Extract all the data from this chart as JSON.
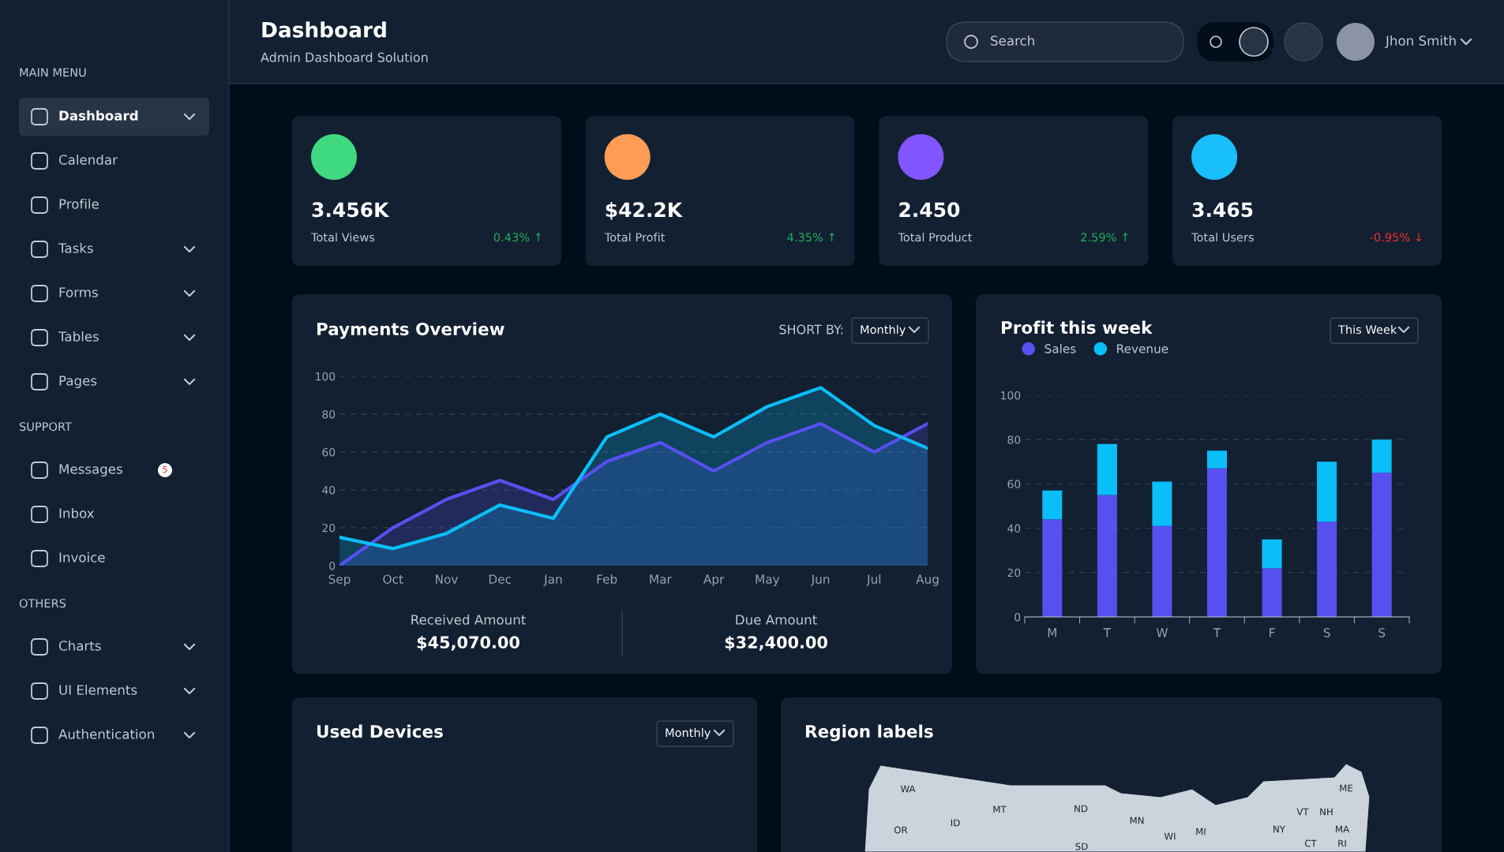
{
  "chart_data": [
    {
      "type": "other",
      "title": "Dashboard",
      "subtitle": "Admin Dashboard Solution",
      "annotations": [
        "MAIN MENU",
        "Dashboard",
        "Calendar",
        "Profile",
        "Tasks",
        "Forms",
        "Tables",
        "Pages",
        "SUPPORT",
        "Messages",
        "5",
        "Inbox",
        "Invoice",
        "OTHERS",
        "Charts",
        "UI Elements",
        "Authentication",
        "Search",
        "Jhon Smith"
      ]
    },
    {
      "type": "other",
      "annotations": [
        "3.456K",
        "Total Views",
        "0.43% ↑"
      ]
    },
    {
      "type": "other",
      "annotations": [
        "$42.2K",
        "Total Profit",
        "4.35% ↑"
      ]
    },
    {
      "type": "other",
      "annotations": [
        "2.450",
        "Total Product",
        "2.59% ↑"
      ]
    },
    {
      "type": "other",
      "annotations": [
        "3.465",
        "Total Users",
        "-0.95% ↓"
      ]
    },
    {
      "type": "area",
      "title": "Payments Overview",
      "categories": [
        "Sep",
        "Oct",
        "Nov",
        "Dec",
        "Jan",
        "Feb",
        "Mar",
        "Apr",
        "May",
        "Jun",
        "Jul",
        "Aug"
      ],
      "series": [
        {
          "color": "#5750f1",
          "values": [
            0,
            20,
            35,
            45,
            35,
            55,
            65,
            50,
            65,
            75,
            60,
            75
          ]
        },
        {
          "color": "#0abef9",
          "values": [
            15,
            9,
            17,
            32,
            25,
            68,
            80,
            68,
            84,
            94,
            74,
            62
          ]
        }
      ],
      "ylim": [
        0,
        100
      ],
      "yticks": [
        0,
        20,
        40,
        60,
        80,
        100
      ],
      "grid": "y",
      "annotations": [
        "SHORT BY:",
        "Monthly",
        "Received Amount",
        "$45,070.00",
        "Due Amount",
        "$32,400.00"
      ]
    },
    {
      "type": "bar",
      "title": "Profit this week",
      "stacked": true,
      "categories": [
        "M",
        "T",
        "W",
        "T",
        "F",
        "S",
        "S"
      ],
      "series": [
        {
          "name": "Sales",
          "color": "#5750f1",
          "values": [
            44,
            55,
            41,
            67,
            22,
            43,
            65
          ]
        },
        {
          "name": "Revenue",
          "color": "#0abef9",
          "values": [
            13,
            23,
            20,
            8,
            13,
            27,
            15
          ]
        }
      ],
      "ylim": [
        0,
        100
      ],
      "yticks": [
        0,
        20,
        40,
        60,
        80,
        100
      ],
      "grid": "y",
      "legend": "top left",
      "annotations": [
        "This Week"
      ]
    },
    {
      "type": "other",
      "title": "Used Devices",
      "annotations": [
        "Monthly"
      ]
    },
    {
      "type": "other",
      "title": "Region labels",
      "annotations": [
        "WA",
        "OR",
        "ID",
        "MT",
        "ND",
        "SD",
        "MN",
        "WI",
        "MI",
        "NY",
        "VT",
        "NH",
        "ME",
        "MA",
        "CT",
        "RI"
      ]
    }
  ]
}
